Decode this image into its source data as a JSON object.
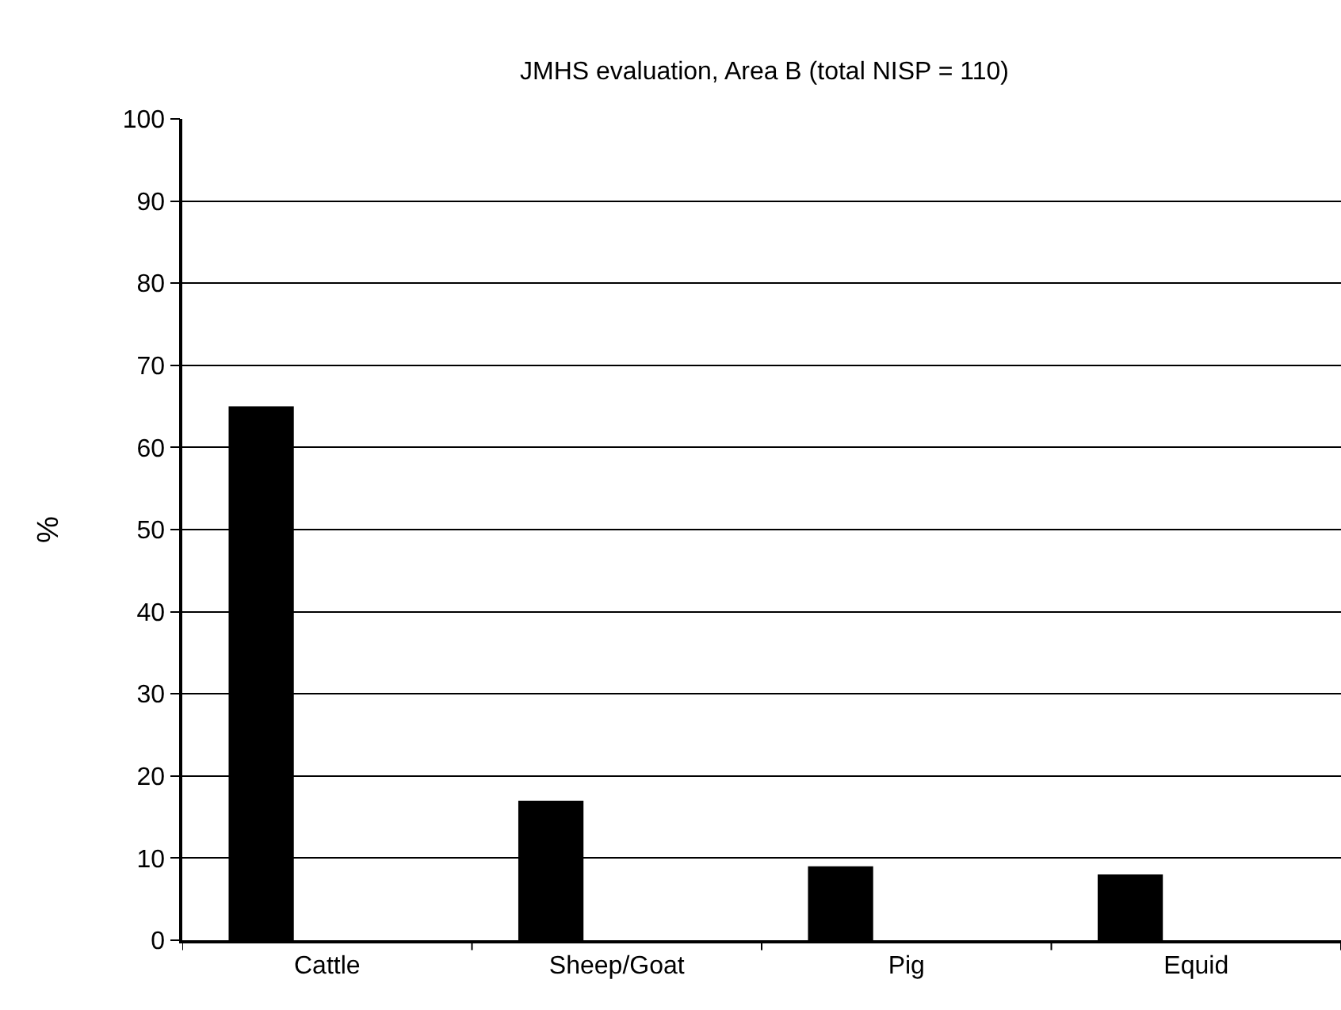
{
  "chart_data": {
    "type": "bar",
    "title": "JMHS evaluation, Area B (total NISP = 110)",
    "ylabel": "%",
    "categories": [
      "Cattle",
      "Sheep/Goat",
      "Pig",
      "Equid"
    ],
    "values": [
      65,
      17,
      9,
      8
    ],
    "color": "#000000",
    "ylim": [
      0,
      100
    ],
    "yticks": [
      0,
      10,
      20,
      30,
      40,
      50,
      60,
      70,
      80,
      90,
      100
    ],
    "grid": "y",
    "legend": false
  }
}
